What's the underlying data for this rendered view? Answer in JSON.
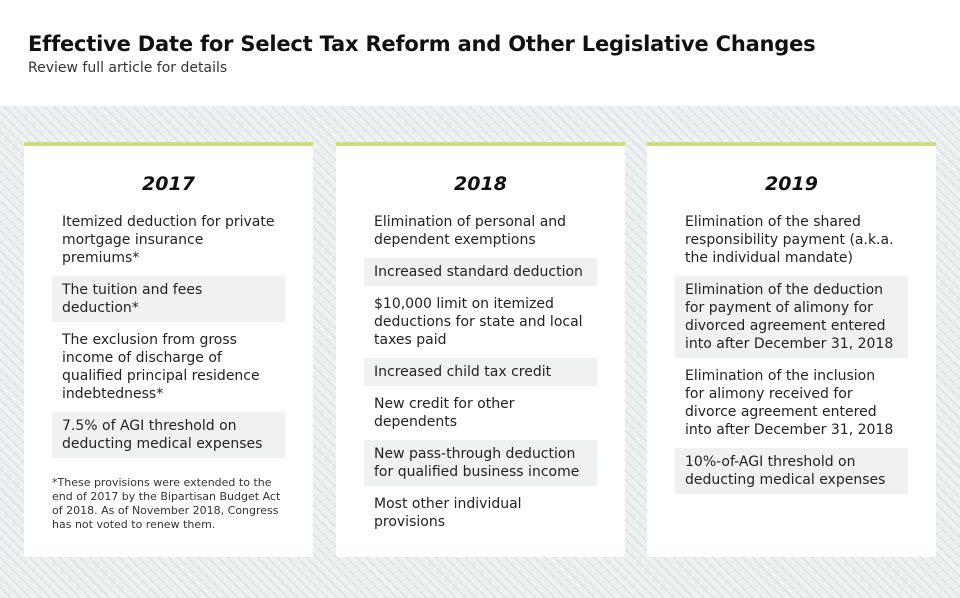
{
  "header": {
    "title": "Effective Date for Select Tax Reform and Other Legislative Changes",
    "subtitle": "Review full article for details"
  },
  "columns": [
    {
      "year": "2017",
      "items": [
        "Itemized deduction for private mortgage insurance premiums*",
        "The tuition and fees deduction*",
        "The exclusion from gross income of discharge of qualified principal residence indebtedness*",
        "7.5% of AGI threshold on deducting medical expenses"
      ],
      "footnote": "*These provisions were extended to the end of 2017 by the Bipartisan Budget Act of 2018. As of November 2018, Congress has not voted to renew them."
    },
    {
      "year": "2018",
      "items": [
        "Elimination of personal and dependent exemptions",
        "Increased standard deduction",
        "$10,000 limit on itemized deductions for state and local taxes paid",
        "Increased child tax credit",
        "New credit for other dependents",
        "New pass-through deduction for qualified business income",
        "Most other individual provisions"
      ]
    },
    {
      "year": "2019",
      "items": [
        "Elimination of the shared responsibility payment (a.k.a. the individual mandate)",
        "Elimination of the deduction for payment of alimony for divorced agreement entered into after December 31, 2018",
        "Elimination of the inclusion for alimony received for divorce agreement entered into after December 31, 2018",
        "10%-of-AGI threshold on deducting medical expenses"
      ]
    }
  ],
  "colors": {
    "accent": "#c8e07a",
    "shaded_row": "#f0f2f2",
    "background_band": "#eef1f1"
  }
}
